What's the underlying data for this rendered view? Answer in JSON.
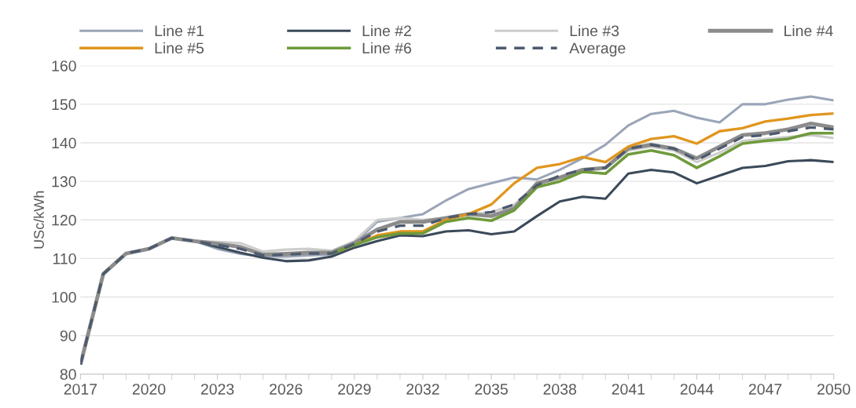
{
  "chart_data": {
    "type": "line",
    "ylabel": "USc/kWh",
    "x": [
      2017,
      2018,
      2019,
      2020,
      2021,
      2022,
      2023,
      2024,
      2025,
      2026,
      2027,
      2028,
      2029,
      2030,
      2031,
      2032,
      2033,
      2034,
      2035,
      2036,
      2037,
      2038,
      2039,
      2040,
      2041,
      2042,
      2043,
      2044,
      2045,
      2046,
      2047,
      2048,
      2049,
      2050
    ],
    "xlim": [
      2017,
      2050
    ],
    "xticks": [
      2017,
      2020,
      2023,
      2026,
      2029,
      2032,
      2035,
      2038,
      2041,
      2044,
      2047,
      2050
    ],
    "ylim": [
      80,
      160
    ],
    "yticks": [
      80,
      90,
      100,
      110,
      120,
      130,
      140,
      150,
      160
    ],
    "grid": "y",
    "legend": "top",
    "marker": "none",
    "series": [
      {
        "name": "Line #1",
        "color": "#9aa5b8",
        "values": [
          82.5,
          106,
          111.3,
          112.5,
          115.3,
          114.5,
          112.5,
          111.2,
          110.5,
          110.5,
          110.8,
          111,
          114,
          119.5,
          120.5,
          121.5,
          125,
          128,
          129.5,
          131,
          130.5,
          133,
          136,
          139.5,
          144.5,
          147.5,
          148.3,
          146.5,
          145.3,
          150,
          150,
          151.2,
          152,
          151
        ]
      },
      {
        "name": "Line #2",
        "color": "#3b4a5a",
        "values": [
          82.5,
          106,
          111.3,
          112.5,
          115.3,
          114.5,
          113,
          111.5,
          110.2,
          109.3,
          109.5,
          110.5,
          112.8,
          114.5,
          116,
          115.8,
          117,
          117.3,
          116.3,
          117,
          121,
          124.8,
          126,
          125.5,
          132,
          133,
          132.3,
          129.5,
          131.5,
          133.5,
          134,
          135.2,
          135.5,
          135
        ]
      },
      {
        "name": "Line #3",
        "color": "#cdcdcd",
        "values": [
          82.5,
          106,
          111.3,
          112.5,
          115.3,
          114.5,
          114.3,
          114,
          111.8,
          112.3,
          112.5,
          112,
          114.5,
          120,
          120.5,
          120,
          120.5,
          121.5,
          122,
          124,
          129,
          131,
          133,
          133.5,
          138,
          139,
          138,
          135,
          137.5,
          140.5,
          141,
          141.5,
          142,
          141.2
        ]
      },
      {
        "name": "Line #4",
        "color": "#8c8c8c",
        "values": [
          82.5,
          106,
          111.3,
          112.5,
          115.3,
          114.5,
          113.8,
          113,
          111,
          111.2,
          111.5,
          111.5,
          114,
          117.5,
          119.5,
          119.5,
          120.5,
          121.5,
          121,
          123,
          129.5,
          131,
          133,
          133.5,
          138.5,
          139.5,
          138.5,
          136,
          139,
          142,
          142.5,
          143.5,
          145,
          144
        ]
      },
      {
        "name": "Line #5",
        "color": "#e0961e",
        "values": [
          null,
          null,
          null,
          null,
          null,
          null,
          null,
          null,
          null,
          null,
          null,
          111.3,
          113.5,
          116,
          117,
          117,
          120,
          121.5,
          124,
          129.5,
          133.5,
          134.5,
          136.3,
          135,
          139,
          141,
          141.7,
          139.8,
          143,
          143.8,
          145.5,
          146.3,
          147.2,
          147.6
        ]
      },
      {
        "name": "Line #6",
        "color": "#6f9a3c",
        "values": [
          null,
          null,
          null,
          null,
          null,
          null,
          null,
          null,
          null,
          null,
          null,
          111.3,
          113.5,
          115.5,
          116.5,
          116.5,
          119.5,
          120.5,
          119.8,
          122.5,
          128.5,
          130,
          132.5,
          132,
          137,
          138,
          136.8,
          133.5,
          136.5,
          139.8,
          140.5,
          141,
          142.5,
          142.5
        ]
      },
      {
        "name": "Average",
        "color": "#4d5a6e",
        "line_style": "dashed",
        "values": [
          82.5,
          106,
          111.3,
          112.5,
          115.3,
          114.5,
          113.5,
          112.5,
          110.8,
          111,
          111.3,
          111.3,
          113.8,
          117,
          118.5,
          118.5,
          120.5,
          121.5,
          122,
          124,
          129,
          131.5,
          133,
          133.5,
          138.5,
          139.5,
          138.5,
          135.5,
          138.5,
          141.5,
          142,
          143,
          144,
          143.5
        ]
      }
    ]
  }
}
